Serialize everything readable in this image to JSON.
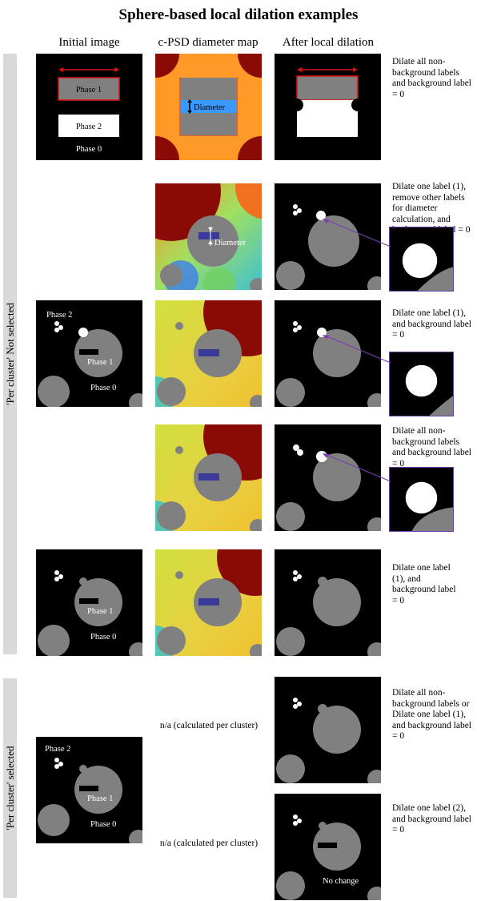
{
  "title": "Sphere-based local dilation examples",
  "columns": [
    "Initial image",
    "c-PSD diameter map",
    "After local dilation"
  ],
  "side_labels": [
    "'Per cluster' Not selected",
    "'Per cluster' selected"
  ],
  "image_labels": {
    "phase1": "Phase 1",
    "phase2": "Phase 2",
    "phase0": "Phase 0",
    "diameter": "Diameter",
    "no_change": "No change"
  },
  "notes": [
    "Dilate all non-background labels and background label = 0",
    "Dilate one label (1), remove other labels for diameter calculation, and background label = 0",
    "Dilate one label (1), and background label = 0",
    "Dilate all non-background labels and background label = 0",
    "Dilate one label (1), and background label = 0",
    "Dilate all non-background labels or Dilate one label (1), and background label = 0",
    "Dilate one label (2), and background label = 0"
  ],
  "na_text": "n/a (calculated per cluster)",
  "colors": {
    "background": "#000000",
    "phase_gray": "#808080",
    "highlight_red": "#e01010",
    "inset_border": "#6b3fa0",
    "arrow_purple": "#7a3fb0"
  }
}
